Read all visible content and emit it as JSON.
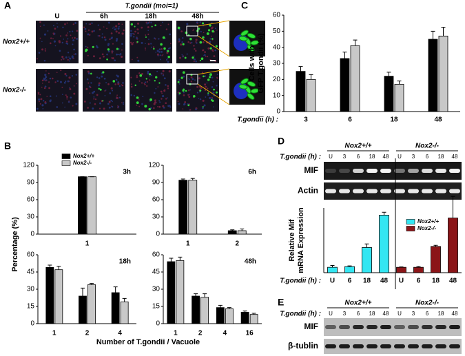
{
  "figure": {
    "panel_labels": [
      "A",
      "B",
      "C",
      "D",
      "E"
    ],
    "panel_a": {
      "header": "T.gondii (moi=1)",
      "columns": [
        "U",
        "6h",
        "18h",
        "48h"
      ],
      "rows": [
        "Nox2+/+",
        "Nox2-/-"
      ]
    },
    "panel_d_gel": {
      "time_label": "T.gondii (h) :",
      "groups": [
        "Nox2+/+",
        "Nox2-/-"
      ],
      "lanes": [
        "U",
        "3",
        "6",
        "18",
        "48",
        "U",
        "3",
        "6",
        "18",
        "48"
      ],
      "bands": [
        "MIF",
        "Actin"
      ]
    },
    "panel_e_gel": {
      "time_label": "T.gondii (h) :",
      "groups": [
        "Nox2+/+",
        "Nox2-/-"
      ],
      "lanes": [
        "U",
        "3",
        "6",
        "18",
        "48",
        "U",
        "3",
        "6",
        "18",
        "48"
      ],
      "bands": [
        "MIF",
        "β-tublin"
      ]
    }
  },
  "chart_data": [
    {
      "type": "bar",
      "title": "3h",
      "ylabel": [
        "Percentage (%)"
      ],
      "xlabel": "Number of T.gondii / Vacuole",
      "categories": [
        "1"
      ],
      "ylim": [
        0,
        120
      ],
      "yticks": [
        0,
        30,
        60,
        90,
        120
      ],
      "legend": "top-left",
      "series": [
        {
          "name": "Nox2+/+",
          "color": "#000000",
          "values": [
            100
          ],
          "errors": [
            0
          ]
        },
        {
          "name": "Nox2-/-",
          "color": "#c8c8c8",
          "values": [
            100
          ],
          "errors": [
            0
          ]
        }
      ]
    },
    {
      "type": "bar",
      "title": "6h",
      "categories": [
        "1",
        "2"
      ],
      "ylim": [
        0,
        120
      ],
      "yticks": [
        0,
        30,
        60,
        90,
        120
      ],
      "series": [
        {
          "color": "#000000",
          "values": [
            94,
            6
          ],
          "errors": [
            2,
            1.5
          ]
        },
        {
          "color": "#c8c8c8",
          "values": [
            94,
            6
          ],
          "errors": [
            3,
            3
          ]
        }
      ]
    },
    {
      "type": "bar",
      "title": "18h",
      "categories": [
        "1",
        "2",
        "4"
      ],
      "ylim": [
        0,
        60
      ],
      "yticks": [
        0,
        15,
        30,
        45,
        60
      ],
      "series": [
        {
          "color": "#000000",
          "values": [
            49,
            24,
            27
          ],
          "errors": [
            2,
            7,
            5
          ]
        },
        {
          "color": "#c8c8c8",
          "values": [
            47,
            34,
            19
          ],
          "errors": [
            3,
            1,
            3
          ]
        }
      ]
    },
    {
      "type": "bar",
      "title": "48h",
      "categories": [
        "1",
        "2",
        "4",
        "16"
      ],
      "ylim": [
        0,
        60
      ],
      "yticks": [
        0,
        15,
        30,
        45,
        60
      ],
      "series": [
        {
          "color": "#000000",
          "values": [
            54,
            24,
            14,
            10
          ],
          "errors": [
            3,
            2,
            2,
            1
          ]
        },
        {
          "color": "#c8c8c8",
          "values": [
            55,
            23,
            13,
            8
          ],
          "errors": [
            3,
            3,
            1,
            1
          ]
        }
      ]
    },
    {
      "type": "bar",
      "ylabel": [
        "Cells with",
        "GFP T.gondii (%)"
      ],
      "xlabel": "T.gondii (h) :",
      "categories": [
        "3",
        "6",
        "18",
        "48"
      ],
      "ylim": [
        0,
        60
      ],
      "yticks": [
        0,
        10,
        20,
        30,
        40,
        50,
        60
      ],
      "series": [
        {
          "color": "#000000",
          "values": [
            25,
            33,
            22,
            45
          ],
          "errors": [
            3,
            4,
            2.5,
            5
          ]
        },
        {
          "color": "#c8c8c8",
          "values": [
            20,
            41,
            17,
            47
          ],
          "errors": [
            3,
            3.5,
            2,
            5.5
          ]
        }
      ]
    },
    {
      "type": "bar",
      "ylabel": [
        "Relative Mif",
        "mRNA Expression"
      ],
      "xlabel": "T.gondii (h) :",
      "categories": [
        "U",
        "6",
        "18",
        "48",
        "U",
        "6",
        "18",
        "48"
      ],
      "ylim": [
        0,
        18
      ],
      "legend": "top-right",
      "series": [
        {
          "name": "Nox2+/+",
          "color": "#33e6f2",
          "values": [
            1.5,
            1.7,
            7,
            16,
            null,
            null,
            null,
            null
          ],
          "errors": [
            0.5,
            0.2,
            1,
            0.8,
            null,
            null,
            null,
            null
          ]
        },
        {
          "name": "Nox2-/-",
          "color": "#8b1518",
          "values": [
            null,
            null,
            null,
            null,
            1.5,
            1.5,
            7.3,
            15.2
          ],
          "errors": [
            null,
            null,
            null,
            null,
            0.1,
            0.2,
            0.3,
            6
          ]
        }
      ]
    }
  ]
}
